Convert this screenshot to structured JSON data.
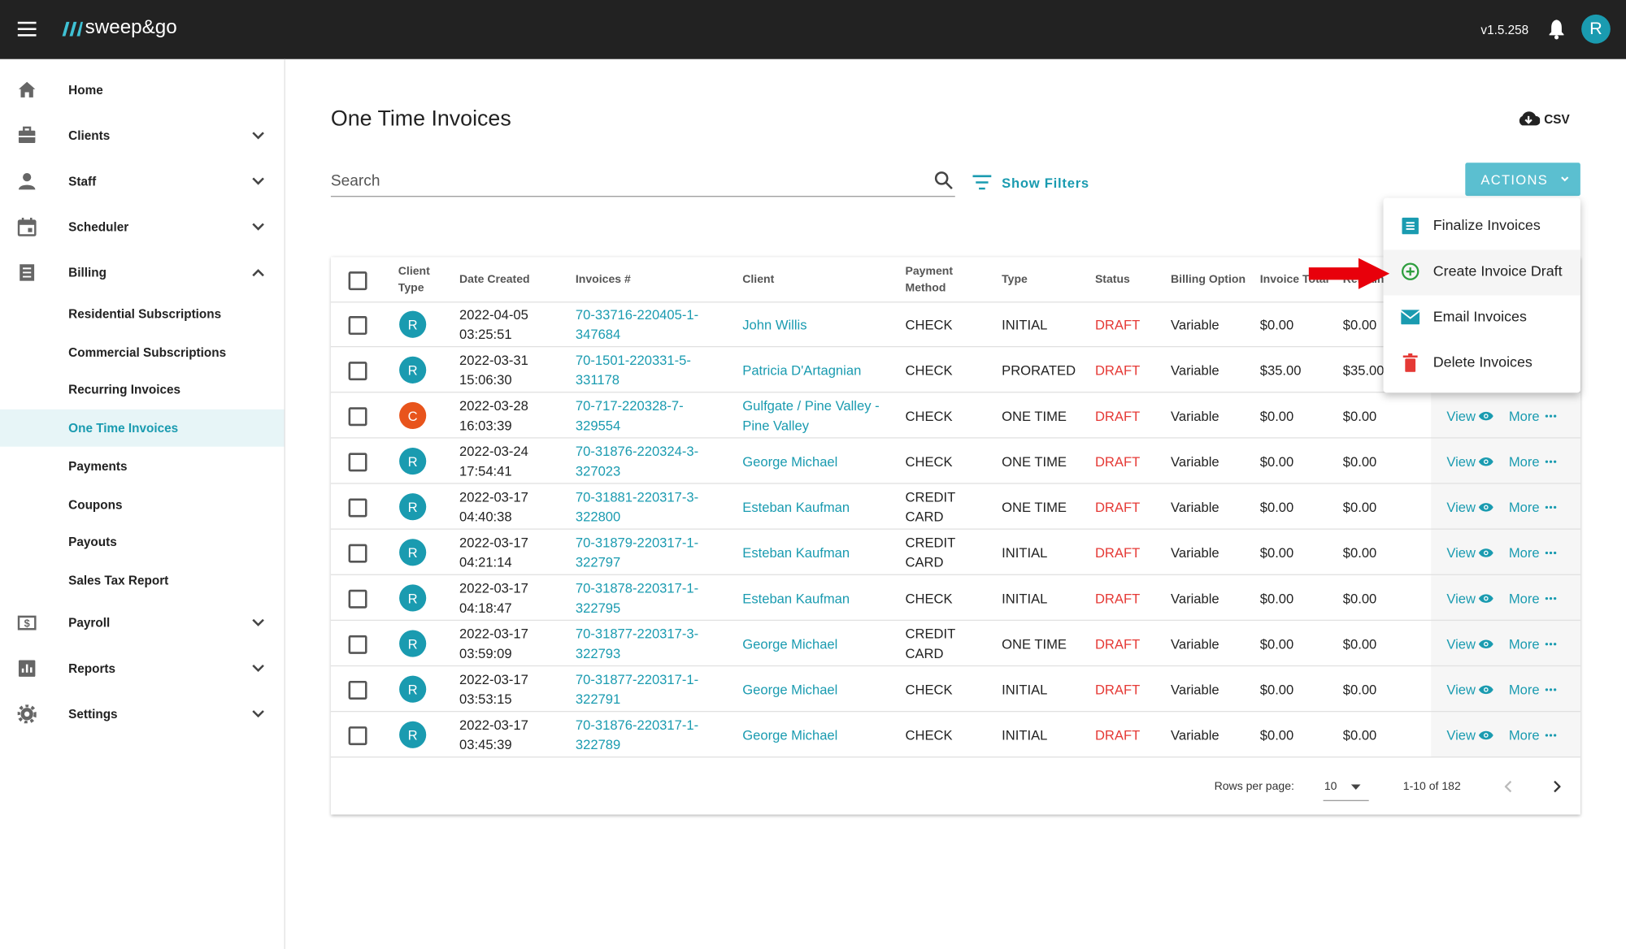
{
  "header": {
    "logo": "sweep&go",
    "version": "v1.5.258",
    "avatar": "R"
  },
  "sidebar": {
    "items": [
      {
        "label": "Home"
      },
      {
        "label": "Clients"
      },
      {
        "label": "Staff"
      },
      {
        "label": "Scheduler"
      },
      {
        "label": "Billing",
        "children": [
          "Residential Subscriptions",
          "Commercial Subscriptions",
          "Recurring Invoices",
          "One Time Invoices",
          "Payments",
          "Coupons",
          "Payouts",
          "Sales Tax Report"
        ],
        "selected_child": 3
      },
      {
        "label": "Payroll"
      },
      {
        "label": "Reports"
      },
      {
        "label": "Settings"
      }
    ]
  },
  "page": {
    "title": "One Time Invoices",
    "csv": "CSV",
    "search_placeholder": "Search",
    "show_filters": "Show Filters",
    "actions": "ACTIONS"
  },
  "actions_menu": [
    "Finalize Invoices",
    "Create Invoice Draft",
    "Email Invoices",
    "Delete Invoices"
  ],
  "avatar_colors": {
    "R": "#1a9bb0",
    "C": "#e8541c"
  },
  "table": {
    "columns": [
      "Client Type",
      "Date Created",
      "Invoices #",
      "Client",
      "Payment Method",
      "Type",
      "Status",
      "Billing Option",
      "Invoice Total",
      "Remaining"
    ],
    "row_links": {
      "view": "View",
      "more": "More"
    },
    "rows": [
      [
        "R",
        "2022-04-05 03:25:51",
        "70-33716-220405-1-347684",
        "John Willis",
        "CHECK",
        "INITIAL",
        "DRAFT",
        "Variable",
        "$0.00",
        "$0.00"
      ],
      [
        "R",
        "2022-03-31 15:06:30",
        "70-1501-220331-5-331178",
        "Patricia D'Artagnian",
        "CHECK",
        "PRORATED",
        "DRAFT",
        "Variable",
        "$35.00",
        "$35.00"
      ],
      [
        "C",
        "2022-03-28 16:03:39",
        "70-717-220328-7-329554",
        "Gulfgate / Pine Valley - Pine Valley",
        "CHECK",
        "ONE TIME",
        "DRAFT",
        "Variable",
        "$0.00",
        "$0.00"
      ],
      [
        "R",
        "2022-03-24 17:54:41",
        "70-31876-220324-3-327023",
        "George Michael",
        "CHECK",
        "ONE TIME",
        "DRAFT",
        "Variable",
        "$0.00",
        "$0.00"
      ],
      [
        "R",
        "2022-03-17 04:40:38",
        "70-31881-220317-3-322800",
        "Esteban Kaufman",
        "CREDIT CARD",
        "ONE TIME",
        "DRAFT",
        "Variable",
        "$0.00",
        "$0.00"
      ],
      [
        "R",
        "2022-03-17 04:21:14",
        "70-31879-220317-1-322797",
        "Esteban Kaufman",
        "CREDIT CARD",
        "INITIAL",
        "DRAFT",
        "Variable",
        "$0.00",
        "$0.00"
      ],
      [
        "R",
        "2022-03-17 04:18:47",
        "70-31878-220317-1-322795",
        "Esteban Kaufman",
        "CHECK",
        "INITIAL",
        "DRAFT",
        "Variable",
        "$0.00",
        "$0.00"
      ],
      [
        "R",
        "2022-03-17 03:59:09",
        "70-31877-220317-3-322793",
        "George Michael",
        "CREDIT CARD",
        "ONE TIME",
        "DRAFT",
        "Variable",
        "$0.00",
        "$0.00"
      ],
      [
        "R",
        "2022-03-17 03:53:15",
        "70-31877-220317-1-322791",
        "George Michael",
        "CHECK",
        "INITIAL",
        "DRAFT",
        "Variable",
        "$0.00",
        "$0.00"
      ],
      [
        "R",
        "2022-03-17 03:45:39",
        "70-31876-220317-1-322789",
        "George Michael",
        "CHECK",
        "INITIAL",
        "DRAFT",
        "Variable",
        "$0.00",
        "$0.00"
      ]
    ]
  },
  "pagination": {
    "rows_per_page_label": "Rows per page:",
    "rows_per_page": "10",
    "range": "1-10 of 182"
  }
}
